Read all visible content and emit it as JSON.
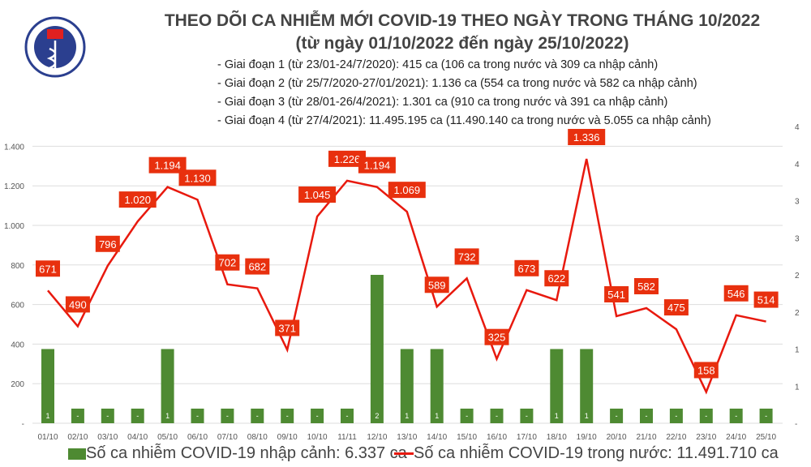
{
  "header": {
    "title": "THEO DÕI CA NHIỄM MỚI COVID-19 THEO NGÀY TRONG THÁNG 10/2022",
    "subtitle": "(từ ngày 01/10/2022 đến ngày 25/10/2022)",
    "logo_text": "BỘ Y TẾ MINISTRY OF HEALTH",
    "phases": [
      "- Giai đoạn 1 (từ 23/01-24/7/2020): 415 ca (106 ca trong nước và 309 ca nhập cảnh)",
      "- Giai đoạn 2 (từ 25/7/2020-27/01/2021): 1.136 ca (554 ca trong nước và 582 ca nhập cảnh)",
      "- Giai đoạn 3 (từ 28/01-26/4/2021): 1.301 ca (910 ca trong nước và 391 ca nhập cảnh)",
      "- Giai đoạn 4 (từ 27/4/2021): 11.495.195 ca (11.490.140 ca trong nước và 5.055 ca nhập cảnh)"
    ]
  },
  "chart_data": {
    "type": "bar+line",
    "categories": [
      "01/10",
      "02/10",
      "03/10",
      "04/10",
      "05/10",
      "06/10",
      "07/10",
      "08/10",
      "09/10",
      "10/10",
      "11/11",
      "12/10",
      "13/10",
      "14/10",
      "15/10",
      "16/10",
      "17/10",
      "18/10",
      "19/10",
      "20/10",
      "21/10",
      "22/10",
      "23/10",
      "24/10",
      "25/10"
    ],
    "series": [
      {
        "name": "Số ca nhiễm COVID-19 nhập cảnh: 6.337 ca",
        "type": "bar",
        "axis": "right",
        "color": "#4e8a32",
        "values": [
          1,
          0,
          0,
          0,
          1,
          0,
          0,
          0,
          0,
          0,
          0,
          2,
          1,
          1,
          0,
          0,
          0,
          1,
          1,
          0,
          0,
          0,
          0,
          0,
          0
        ]
      },
      {
        "name": "Số ca nhiễm COVID-19 trong nước: 11.491.710 ca",
        "type": "line",
        "axis": "left",
        "color": "#e8190e",
        "values": [
          671,
          490,
          796,
          1020,
          1194,
          1130,
          702,
          682,
          371,
          1045,
          1226,
          1194,
          1069,
          589,
          732,
          325,
          673,
          622,
          1336,
          541,
          582,
          475,
          158,
          546,
          514
        ]
      }
    ],
    "left_ticks": [
      "-",
      "200",
      "400",
      "600",
      "800",
      "1.000",
      "1.200",
      "1.400"
    ],
    "right_ticks": [
      "-",
      "1",
      "1",
      "2",
      "2",
      "3",
      "3",
      "4",
      "4"
    ],
    "ylim_left": [
      0,
      1500
    ],
    "ylim_right": [
      0,
      4
    ],
    "grid": true,
    "legend": "bottom"
  }
}
